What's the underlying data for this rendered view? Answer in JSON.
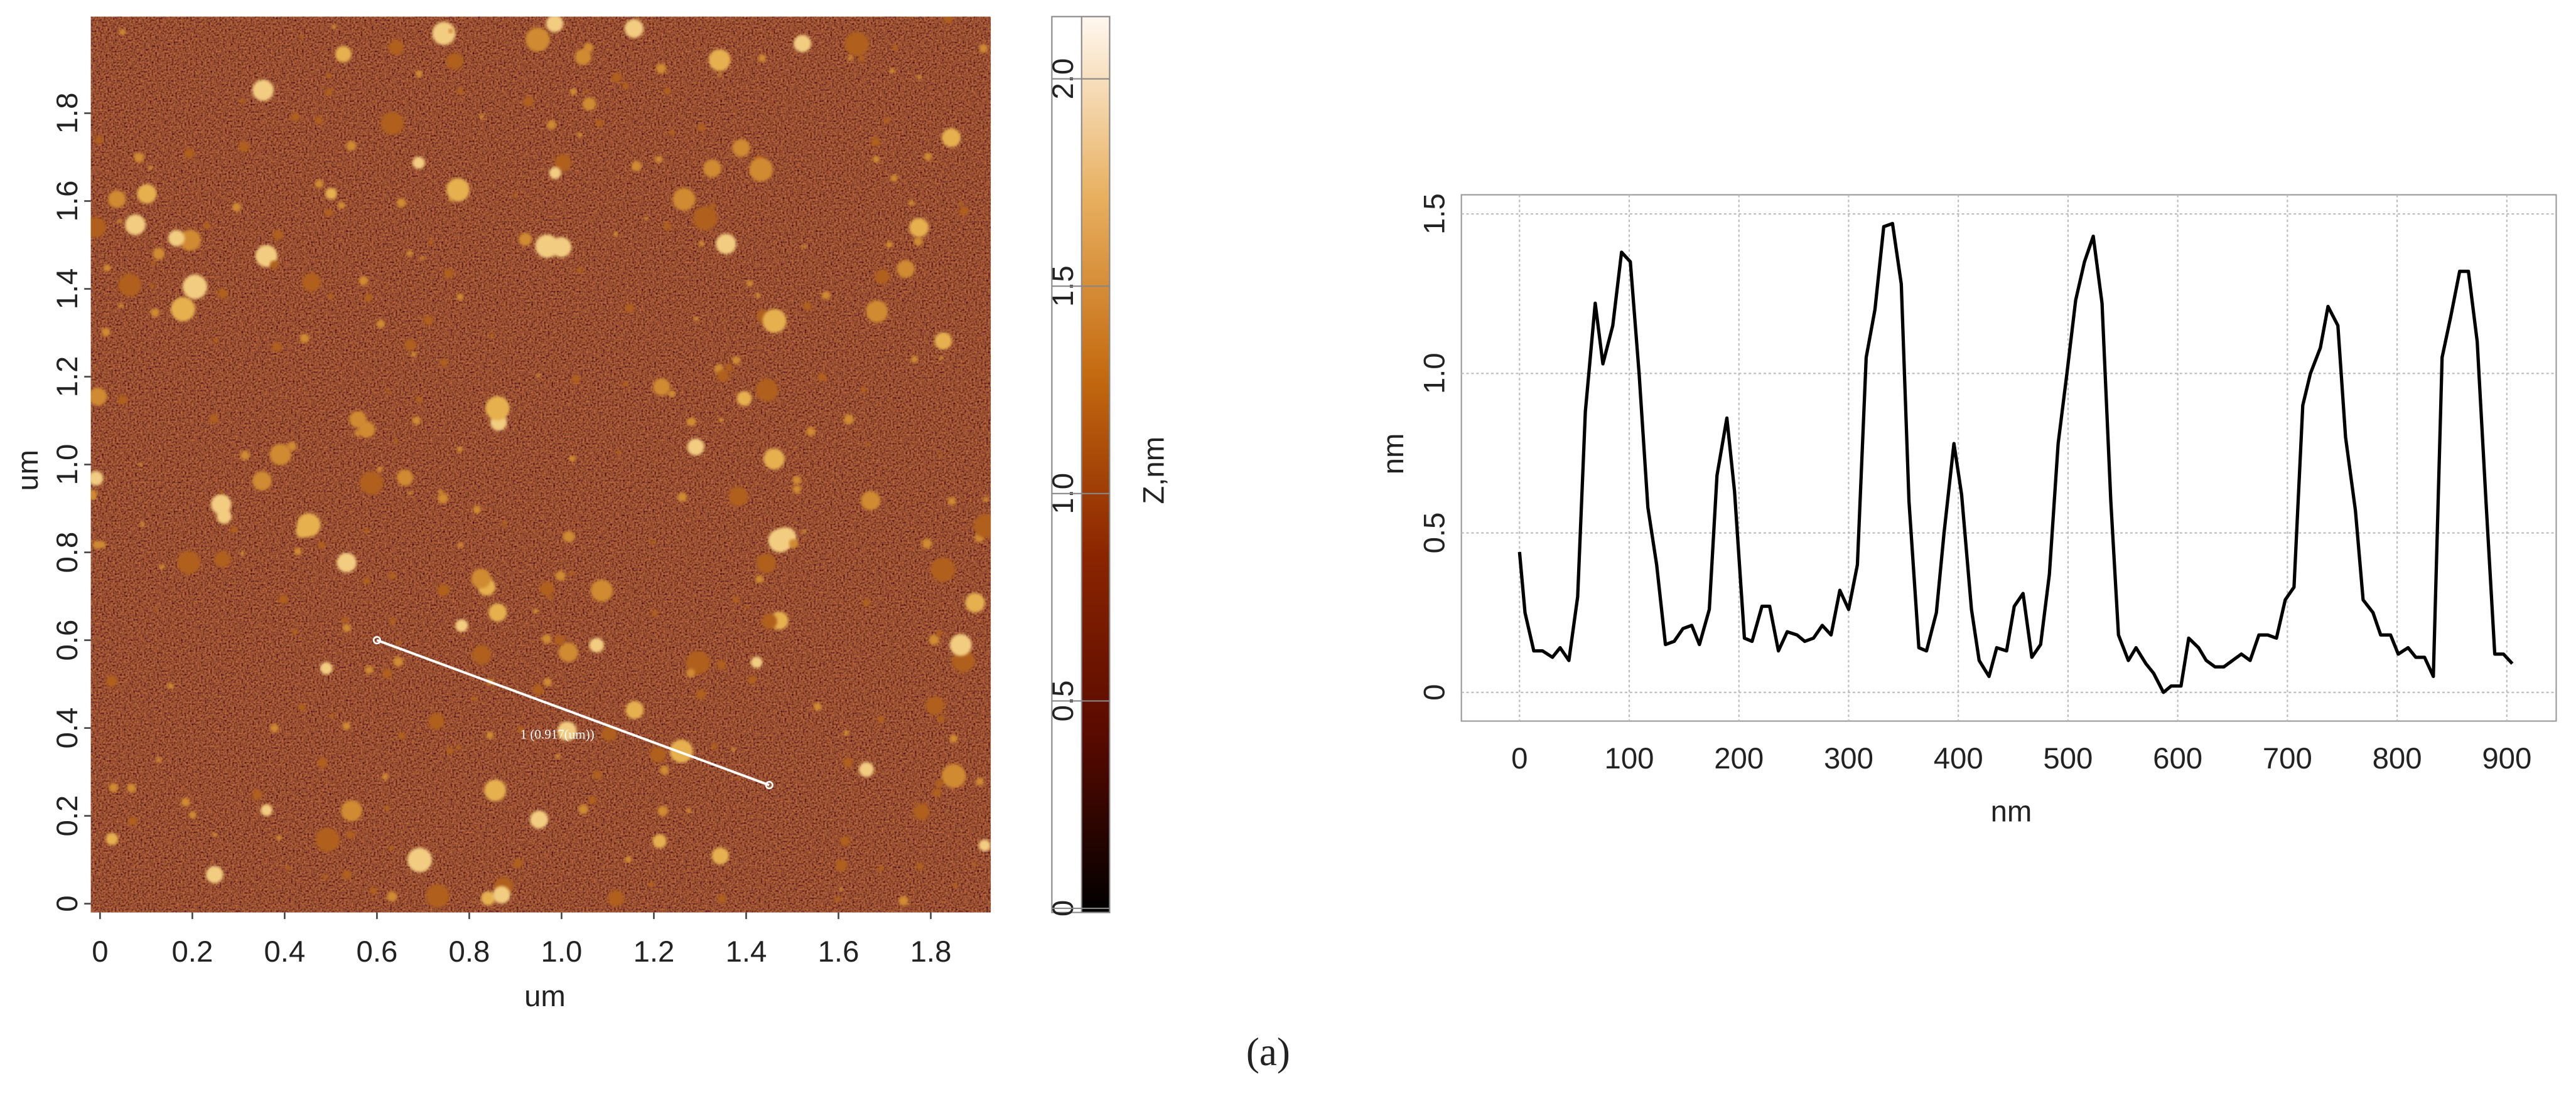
{
  "chart_data": [
    {
      "type": "image",
      "xlabel": "um",
      "ylabel": "um",
      "xlim": [
        -0.02,
        1.93
      ],
      "ylim": [
        -0.02,
        2.02
      ],
      "xticks": [
        0,
        0.2,
        0.4,
        0.6,
        0.8,
        {
          "value": 1,
          "label": "1.0"
        },
        1.2,
        1.4,
        1.6,
        1.8
      ],
      "yticks": [
        0,
        0.2,
        0.4,
        0.6,
        0.8,
        {
          "value": 1,
          "label": "1.0"
        },
        1.2,
        1.4,
        1.6,
        1.8
      ],
      "colorbar": {
        "label": "Z,nm",
        "lim": [
          -0.01,
          2.15
        ],
        "ticks": [
          0,
          0.5,
          {
            "value": 1,
            "label": "1.0"
          },
          1.5,
          {
            "value": 2,
            "label": "2.0"
          }
        ],
        "colors": [
          "#000000",
          "#5a0a00",
          "#8b2500",
          "#c46a10",
          "#e8b060",
          "#fff8f0"
        ]
      },
      "annotation": {
        "text": "1 (0.917(um))",
        "x": [
          0.6,
          1.45
        ],
        "y": [
          0.6,
          0.27
        ],
        "color": "#ffffff"
      }
    },
    {
      "type": "line",
      "xlabel": "nm",
      "ylabel": "nm",
      "xlim": [
        -53,
        945
      ],
      "ylim": [
        -0.09,
        1.56
      ],
      "xticks": [
        0,
        100,
        200,
        300,
        400,
        500,
        600,
        700,
        800,
        900
      ],
      "yticks": [
        0,
        0.5,
        {
          "value": 1,
          "label": "1.0"
        },
        1.5
      ],
      "grid": true,
      "series": [
        {
          "color": "#000000",
          "x": [
            0,
            5,
            13,
            21,
            30,
            37,
            45,
            53,
            60,
            69,
            76,
            85,
            93,
            101,
            109,
            117,
            125,
            133,
            141,
            149,
            157,
            164,
            173,
            180,
            189,
            196,
            205,
            212,
            221,
            228,
            236,
            244,
            253,
            260,
            268,
            276,
            284,
            292,
            300,
            308,
            316,
            324,
            332,
            340,
            348,
            355,
            364,
            371,
            380,
            387,
            396,
            403,
            412,
            419,
            428,
            435,
            444,
            451,
            459,
            467,
            475,
            483,
            491,
            499,
            507,
            515,
            523,
            531,
            539,
            546,
            555,
            562,
            571,
            578,
            587,
            594,
            603,
            610,
            619,
            626,
            634,
            642,
            650,
            658,
            666,
            674,
            682,
            690,
            698,
            706,
            714,
            721,
            730,
            737,
            746,
            753,
            762,
            769,
            778,
            785,
            794,
            801,
            810,
            817,
            825,
            833,
            841,
            849,
            857,
            865,
            873,
            881,
            889,
            897,
            905
          ],
          "values": [
            0.44,
            0.25,
            0.13,
            0.13,
            0.11,
            0.14,
            0.1,
            0.3,
            0.88,
            1.22,
            1.03,
            1.15,
            1.38,
            1.35,
            1.0,
            0.58,
            0.4,
            0.15,
            0.16,
            0.2,
            0.21,
            0.15,
            0.26,
            0.68,
            0.86,
            0.63,
            0.17,
            0.16,
            0.27,
            0.27,
            0.13,
            0.19,
            0.18,
            0.16,
            0.17,
            0.21,
            0.18,
            0.32,
            0.26,
            0.4,
            1.05,
            1.2,
            1.46,
            1.47,
            1.28,
            0.6,
            0.14,
            0.13,
            0.25,
            0.5,
            0.78,
            0.62,
            0.26,
            0.1,
            0.05,
            0.14,
            0.13,
            0.27,
            0.31,
            0.11,
            0.15,
            0.37,
            0.78,
            1.0,
            1.23,
            1.35,
            1.43,
            1.22,
            0.6,
            0.18,
            0.1,
            0.14,
            0.09,
            0.06,
            0.0,
            0.02,
            0.02,
            0.17,
            0.14,
            0.1,
            0.08,
            0.08,
            0.1,
            0.12,
            0.1,
            0.18,
            0.18,
            0.17,
            0.29,
            0.33,
            0.9,
            1.0,
            1.08,
            1.21,
            1.15,
            0.8,
            0.57,
            0.29,
            0.25,
            0.18,
            0.18,
            0.12,
            0.14,
            0.11,
            0.11,
            0.05,
            1.05,
            1.18,
            1.32,
            1.32,
            1.1,
            0.6,
            0.12,
            0.12,
            0.09
          ]
        }
      ]
    }
  ],
  "caption": "(a)"
}
